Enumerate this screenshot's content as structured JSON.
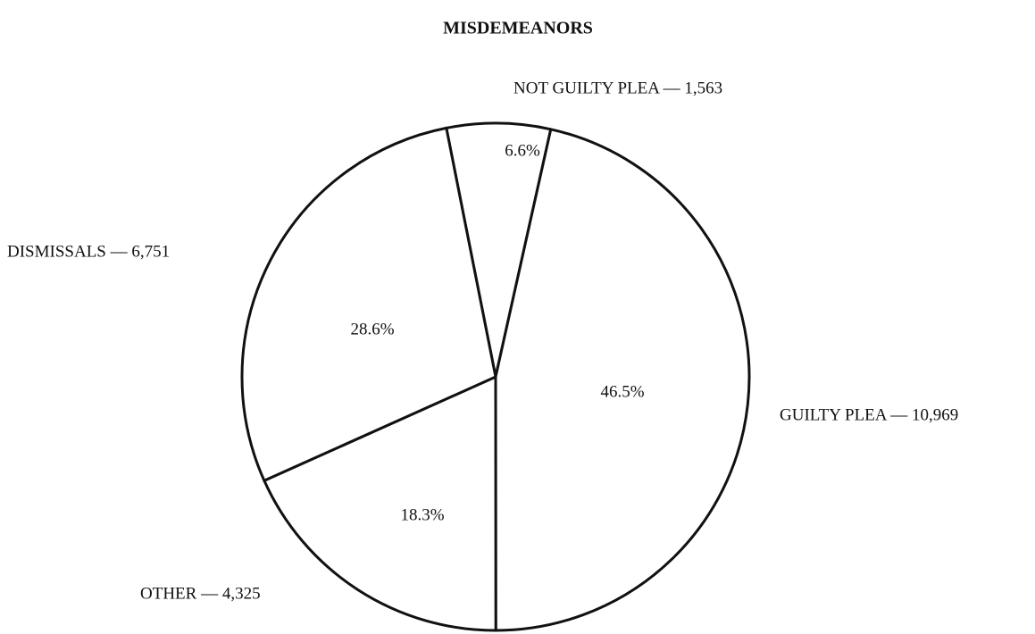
{
  "chart_data": {
    "type": "pie",
    "title": "MISDEMEANORS",
    "categories": [
      "NOT GUILTY PLEA — 1,563",
      "GUILTY PLEA — 10,969",
      "OTHER — 4,325",
      "DISMISSALS — 6,751"
    ],
    "values": [
      6.6,
      46.5,
      18.3,
      28.6
    ],
    "value_labels": [
      "6.6%",
      "46.5%",
      "18.3%",
      "28.6%"
    ],
    "color": "#ffffff"
  }
}
